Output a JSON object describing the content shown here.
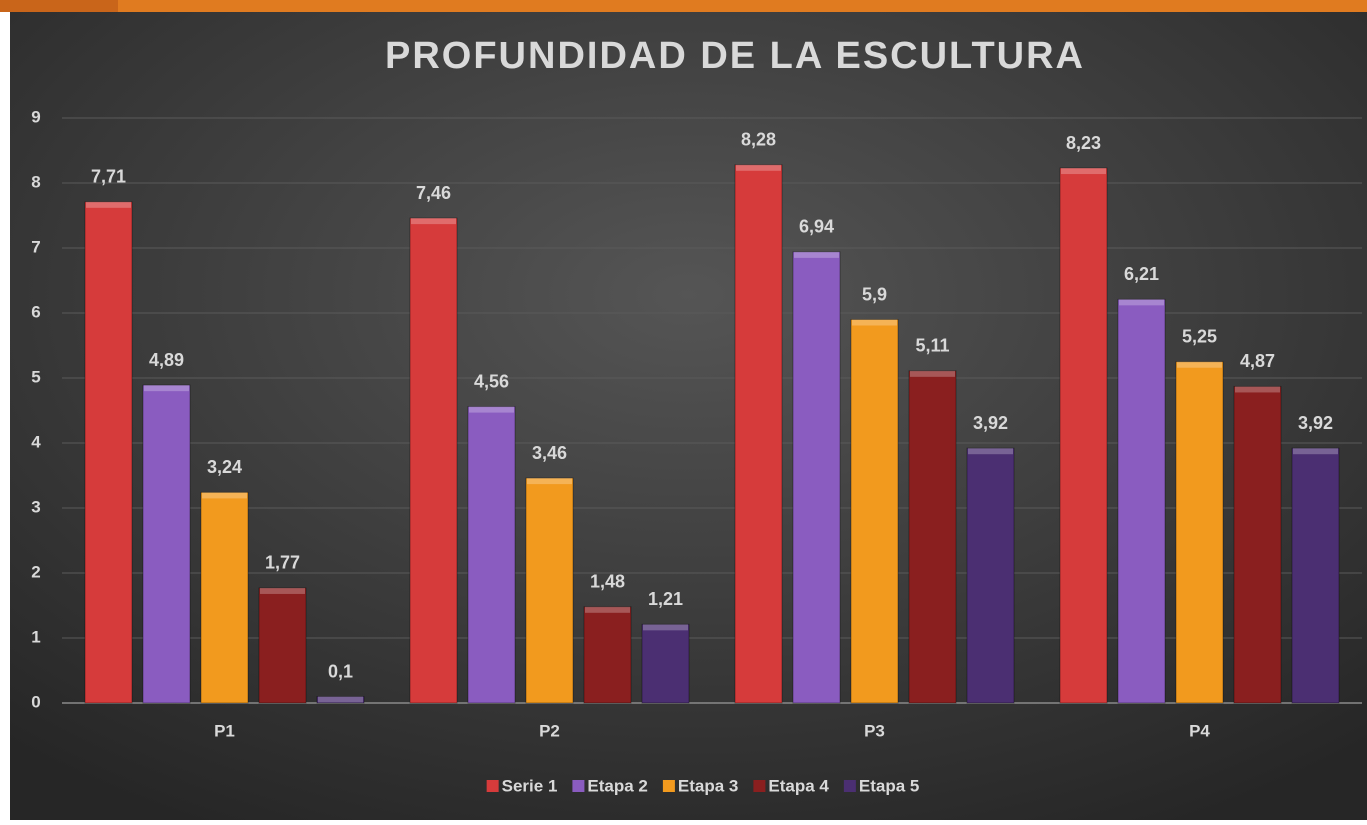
{
  "chart_data": {
    "type": "bar",
    "title": "PROFUNDIDAD DE LA ESCULTURA",
    "categories": [
      "P1",
      "P2",
      "P3",
      "P4"
    ],
    "series": [
      {
        "name": "Serie 1",
        "color": "#d63b3b",
        "values": [
          7.71,
          7.46,
          8.28,
          8.23
        ],
        "value_labels": [
          "7,71",
          "7,46",
          "8,28",
          "8,23"
        ]
      },
      {
        "name": "Etapa 2",
        "color": "#8a5cc0",
        "values": [
          4.89,
          4.56,
          6.94,
          6.21
        ],
        "value_labels": [
          "4,89",
          "4,56",
          "6,94",
          "6,21"
        ]
      },
      {
        "name": "Etapa 3",
        "color": "#f29a1e",
        "values": [
          3.24,
          3.46,
          5.9,
          5.25
        ],
        "value_labels": [
          "3,24",
          "3,46",
          "5,9",
          "5,25"
        ]
      },
      {
        "name": "Etapa 4",
        "color": "#8a1f1f",
        "values": [
          1.77,
          1.48,
          5.11,
          4.87
        ],
        "value_labels": [
          "1,77",
          "1,48",
          "5,11",
          "4,87"
        ]
      },
      {
        "name": "Etapa 5",
        "color": "#4b2f72",
        "values": [
          0.1,
          1.21,
          3.92,
          3.92
        ],
        "value_labels": [
          "0,1",
          "1,21",
          "3,92",
          "3,92"
        ]
      }
    ],
    "ylim": [
      0,
      9
    ],
    "yticks": [
      0,
      1,
      2,
      3,
      4,
      5,
      6,
      7,
      8,
      9
    ],
    "grid": true,
    "legend": "bottom"
  }
}
